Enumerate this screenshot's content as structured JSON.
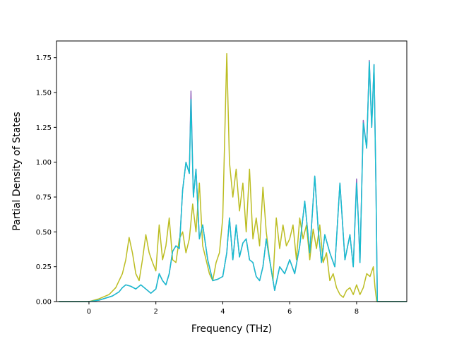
{
  "chart_data": {
    "type": "line",
    "title": "",
    "xlabel": "Frequency (THz)",
    "ylabel": "Partial Density of States",
    "xlim": [
      -0.97,
      9.5
    ],
    "ylim": [
      0,
      1.87
    ],
    "xticks": [
      0,
      2,
      4,
      6,
      8
    ],
    "xtick_labels": [
      "0",
      "2",
      "4",
      "6",
      "8"
    ],
    "yticks": [
      0.0,
      0.25,
      0.5,
      0.75,
      1.0,
      1.25,
      1.5,
      1.75
    ],
    "ytick_labels": [
      "0.00",
      "0.25",
      "0.50",
      "0.75",
      "1.00",
      "1.25",
      "1.50",
      "1.75"
    ],
    "grid": false,
    "legend": "none",
    "series": [
      {
        "color": "#9467bd",
        "x": [
          -0.9,
          0.0,
          0.3,
          0.7,
          0.9,
          1.0,
          1.1,
          1.25,
          1.4,
          1.55,
          1.7,
          1.85,
          2.0,
          2.1,
          2.2,
          2.3,
          2.4,
          2.5,
          2.6,
          2.7,
          2.8,
          2.9,
          3.0,
          3.05,
          3.12,
          3.2,
          3.3,
          3.4,
          3.55,
          3.7,
          3.85,
          4.0,
          4.12,
          4.2,
          4.3,
          4.4,
          4.5,
          4.6,
          4.7,
          4.8,
          4.9,
          5.0,
          5.1,
          5.2,
          5.3,
          5.4,
          5.55,
          5.7,
          5.85,
          6.0,
          6.15,
          6.3,
          6.45,
          6.6,
          6.75,
          6.85,
          6.95,
          7.05,
          7.2,
          7.35,
          7.5,
          7.65,
          7.8,
          7.9,
          8.0,
          8.05,
          8.1,
          8.2,
          8.3,
          8.38,
          8.45,
          8.52,
          8.58,
          8.62,
          9.5
        ],
        "y": [
          0.0,
          0.0,
          0.01,
          0.04,
          0.07,
          0.1,
          0.12,
          0.11,
          0.09,
          0.12,
          0.09,
          0.06,
          0.09,
          0.2,
          0.15,
          0.12,
          0.2,
          0.36,
          0.4,
          0.38,
          0.8,
          1.0,
          0.92,
          1.51,
          0.75,
          0.95,
          0.45,
          0.55,
          0.3,
          0.15,
          0.16,
          0.18,
          0.35,
          0.6,
          0.3,
          0.55,
          0.32,
          0.42,
          0.45,
          0.3,
          0.28,
          0.18,
          0.15,
          0.25,
          0.45,
          0.3,
          0.08,
          0.25,
          0.2,
          0.3,
          0.2,
          0.4,
          0.72,
          0.35,
          0.9,
          0.52,
          0.28,
          0.48,
          0.35,
          0.25,
          0.85,
          0.3,
          0.48,
          0.25,
          0.88,
          0.6,
          0.28,
          1.3,
          1.1,
          1.73,
          1.25,
          1.7,
          0.8,
          0.0,
          0.0
        ]
      },
      {
        "color": "#bcbd22",
        "x": [
          -0.9,
          0.0,
          0.3,
          0.6,
          0.8,
          0.9,
          1.0,
          1.1,
          1.2,
          1.3,
          1.4,
          1.5,
          1.6,
          1.7,
          1.8,
          1.9,
          2.0,
          2.1,
          2.2,
          2.3,
          2.4,
          2.5,
          2.6,
          2.7,
          2.8,
          2.9,
          3.0,
          3.1,
          3.2,
          3.3,
          3.4,
          3.5,
          3.6,
          3.7,
          3.8,
          3.9,
          4.0,
          4.05,
          4.12,
          4.2,
          4.3,
          4.4,
          4.5,
          4.6,
          4.7,
          4.8,
          4.9,
          5.0,
          5.1,
          5.2,
          5.3,
          5.4,
          5.5,
          5.6,
          5.7,
          5.8,
          5.9,
          6.0,
          6.1,
          6.2,
          6.3,
          6.4,
          6.5,
          6.6,
          6.7,
          6.8,
          6.9,
          7.0,
          7.1,
          7.2,
          7.3,
          7.4,
          7.5,
          7.6,
          7.7,
          7.8,
          7.9,
          8.0,
          8.1,
          8.2,
          8.3,
          8.4,
          8.5,
          8.55,
          8.6,
          9.5
        ],
        "y": [
          0.0,
          0.0,
          0.02,
          0.05,
          0.1,
          0.15,
          0.2,
          0.3,
          0.46,
          0.35,
          0.2,
          0.15,
          0.3,
          0.48,
          0.35,
          0.28,
          0.22,
          0.55,
          0.3,
          0.4,
          0.6,
          0.3,
          0.28,
          0.45,
          0.5,
          0.35,
          0.45,
          0.7,
          0.5,
          0.85,
          0.4,
          0.3,
          0.2,
          0.15,
          0.28,
          0.35,
          0.6,
          1.1,
          1.78,
          1.0,
          0.75,
          0.95,
          0.65,
          0.85,
          0.5,
          0.95,
          0.45,
          0.6,
          0.4,
          0.82,
          0.5,
          0.3,
          0.15,
          0.6,
          0.38,
          0.55,
          0.4,
          0.45,
          0.55,
          0.3,
          0.6,
          0.45,
          0.55,
          0.3,
          0.52,
          0.38,
          0.55,
          0.28,
          0.35,
          0.15,
          0.2,
          0.1,
          0.05,
          0.03,
          0.08,
          0.1,
          0.05,
          0.12,
          0.05,
          0.1,
          0.2,
          0.18,
          0.25,
          0.1,
          0.0,
          0.0
        ]
      },
      {
        "color": "#17becf",
        "x": [
          -0.9,
          0.0,
          0.3,
          0.7,
          0.9,
          1.0,
          1.1,
          1.25,
          1.4,
          1.55,
          1.7,
          1.85,
          2.0,
          2.1,
          2.2,
          2.3,
          2.4,
          2.5,
          2.6,
          2.7,
          2.8,
          2.9,
          3.0,
          3.05,
          3.12,
          3.2,
          3.3,
          3.4,
          3.55,
          3.7,
          3.85,
          4.0,
          4.12,
          4.2,
          4.3,
          4.4,
          4.5,
          4.6,
          4.7,
          4.8,
          4.9,
          5.0,
          5.1,
          5.2,
          5.3,
          5.4,
          5.55,
          5.7,
          5.85,
          6.0,
          6.15,
          6.3,
          6.45,
          6.6,
          6.75,
          6.85,
          6.95,
          7.05,
          7.2,
          7.35,
          7.5,
          7.65,
          7.8,
          7.9,
          8.0,
          8.05,
          8.1,
          8.2,
          8.3,
          8.38,
          8.45,
          8.52,
          8.58,
          8.62,
          9.5
        ],
        "y": [
          0.0,
          0.0,
          0.01,
          0.04,
          0.07,
          0.1,
          0.12,
          0.11,
          0.09,
          0.12,
          0.09,
          0.06,
          0.09,
          0.2,
          0.15,
          0.12,
          0.2,
          0.36,
          0.4,
          0.38,
          0.8,
          1.0,
          0.92,
          1.45,
          0.75,
          0.95,
          0.45,
          0.55,
          0.3,
          0.15,
          0.16,
          0.18,
          0.35,
          0.6,
          0.3,
          0.55,
          0.32,
          0.42,
          0.45,
          0.3,
          0.28,
          0.18,
          0.15,
          0.25,
          0.45,
          0.3,
          0.08,
          0.25,
          0.2,
          0.3,
          0.2,
          0.4,
          0.72,
          0.35,
          0.9,
          0.52,
          0.28,
          0.48,
          0.35,
          0.25,
          0.85,
          0.3,
          0.48,
          0.25,
          0.85,
          0.6,
          0.28,
          1.28,
          1.1,
          1.72,
          1.25,
          1.7,
          0.8,
          0.0,
          0.0
        ]
      }
    ]
  }
}
